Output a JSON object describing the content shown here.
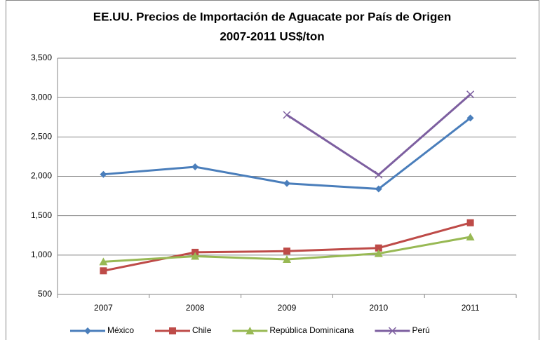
{
  "chart_data": {
    "type": "line",
    "title": [
      "EE.UU. Precios de Importación de Aguacate por País de Origen",
      "2007-2011 US$/ton"
    ],
    "categories": [
      "2007",
      "2008",
      "2009",
      "2010",
      "2011"
    ],
    "series": [
      {
        "name": "México",
        "color": "#4a7ebb",
        "marker": "diamond",
        "values": [
          2025,
          2120,
          1910,
          1840,
          2740
        ]
      },
      {
        "name": "Chile",
        "color": "#be4b48",
        "marker": "square",
        "values": [
          800,
          1035,
          1050,
          1090,
          1410
        ]
      },
      {
        "name": "República Dominicana",
        "color": "#98b954",
        "marker": "triangle",
        "values": [
          915,
          985,
          945,
          1020,
          1230
        ]
      },
      {
        "name": "Perú",
        "color": "#7d5fa0",
        "marker": "x",
        "values": [
          null,
          null,
          2780,
          2020,
          3040
        ]
      }
    ],
    "ylim": [
      500,
      3500
    ],
    "yticks": [
      500,
      {
        "value": 1000,
        "label": "1,000"
      },
      {
        "value": 1500,
        "label": "1,500"
      },
      {
        "value": 2000,
        "label": "2,000"
      },
      {
        "value": 2500,
        "label": "2,500"
      },
      {
        "value": 3000,
        "label": "3,000"
      },
      {
        "value": 3500,
        "label": "3,500"
      }
    ],
    "grid": true,
    "legend": "bottom"
  }
}
